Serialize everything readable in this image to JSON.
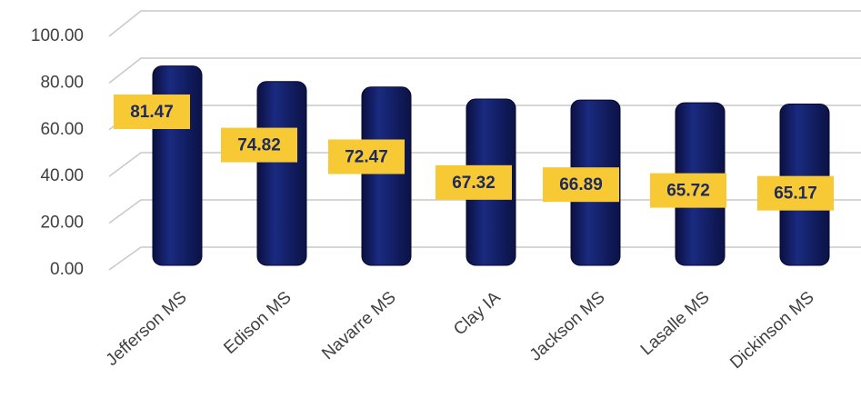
{
  "chart_data": {
    "type": "bar",
    "categories": [
      "Jefferson MS",
      "Edison MS",
      "Navarre MS",
      "Clay IA",
      "Jackson MS",
      "Lasalle MS",
      "Dickinson MS"
    ],
    "values": [
      81.47,
      74.82,
      72.47,
      67.32,
      66.89,
      65.72,
      65.17
    ],
    "color": "#14206b",
    "label_color": "#f7c935",
    "ylim": [
      0,
      100
    ],
    "yticks": [
      {
        "value": 0,
        "label": "0.00"
      },
      {
        "value": 20,
        "label": "20.00"
      },
      {
        "value": 40,
        "label": "40.00"
      },
      {
        "value": 60,
        "label": "60.00"
      },
      {
        "value": 80,
        "label": "80.00"
      },
      {
        "value": 100,
        "label": "100.00"
      }
    ],
    "grid": true
  }
}
